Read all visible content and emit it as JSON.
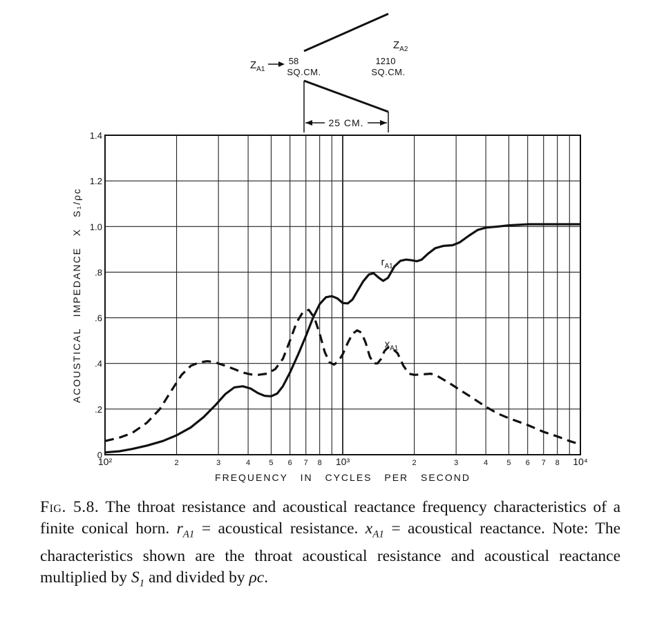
{
  "chart_data": {
    "type": "line",
    "x_scale": "log",
    "xlim": [
      100,
      10000
    ],
    "ylim": [
      0,
      1.4
    ],
    "grid": true,
    "xlabel": "FREQUENCY IN CYCLES PER SECOND",
    "ylabel": "ACOUSTICAL IMPEDANCE X S₁/ρc",
    "x_ticks": [
      {
        "value": 100,
        "label": "10²"
      },
      {
        "value": 200,
        "label": "2"
      },
      {
        "value": 300,
        "label": "3"
      },
      {
        "value": 400,
        "label": "4"
      },
      {
        "value": 500,
        "label": "5"
      },
      {
        "value": 600,
        "label": "6"
      },
      {
        "value": 700,
        "label": "7"
      },
      {
        "value": 800,
        "label": "8"
      },
      {
        "value": 1000,
        "label": "10³"
      },
      {
        "value": 2000,
        "label": "2"
      },
      {
        "value": 3000,
        "label": "3"
      },
      {
        "value": 4000,
        "label": "4"
      },
      {
        "value": 5000,
        "label": "5"
      },
      {
        "value": 6000,
        "label": "6"
      },
      {
        "value": 7000,
        "label": "7"
      },
      {
        "value": 8000,
        "label": "8"
      },
      {
        "value": 10000,
        "label": "10⁴"
      }
    ],
    "y_ticks": [
      {
        "value": 0,
        "label": "0"
      },
      {
        "value": 0.2,
        "label": ".2"
      },
      {
        "value": 0.4,
        "label": ".4"
      },
      {
        "value": 0.6,
        "label": ".6"
      },
      {
        "value": 0.8,
        "label": ".8"
      },
      {
        "value": 1.0,
        "label": "1.0"
      },
      {
        "value": 1.2,
        "label": "1.2"
      },
      {
        "value": 1.4,
        "label": "1.4"
      }
    ],
    "series": [
      {
        "name": "r_A1",
        "label": "r",
        "label_sub": "A1",
        "style": "solid",
        "label_at": [
          1450,
          0.83
        ],
        "points": [
          [
            100,
            0.01
          ],
          [
            115,
            0.015
          ],
          [
            130,
            0.025
          ],
          [
            150,
            0.04
          ],
          [
            175,
            0.06
          ],
          [
            200,
            0.085
          ],
          [
            230,
            0.12
          ],
          [
            260,
            0.165
          ],
          [
            290,
            0.215
          ],
          [
            320,
            0.265
          ],
          [
            350,
            0.295
          ],
          [
            380,
            0.3
          ],
          [
            410,
            0.29
          ],
          [
            440,
            0.27
          ],
          [
            470,
            0.258
          ],
          [
            500,
            0.256
          ],
          [
            530,
            0.268
          ],
          [
            560,
            0.3
          ],
          [
            600,
            0.36
          ],
          [
            650,
            0.44
          ],
          [
            700,
            0.52
          ],
          [
            750,
            0.6
          ],
          [
            800,
            0.66
          ],
          [
            850,
            0.69
          ],
          [
            900,
            0.695
          ],
          [
            950,
            0.685
          ],
          [
            1000,
            0.665
          ],
          [
            1050,
            0.663
          ],
          [
            1100,
            0.68
          ],
          [
            1150,
            0.715
          ],
          [
            1220,
            0.76
          ],
          [
            1290,
            0.79
          ],
          [
            1350,
            0.795
          ],
          [
            1420,
            0.775
          ],
          [
            1480,
            0.762
          ],
          [
            1550,
            0.775
          ],
          [
            1650,
            0.825
          ],
          [
            1750,
            0.85
          ],
          [
            1850,
            0.855
          ],
          [
            1950,
            0.852
          ],
          [
            2050,
            0.848
          ],
          [
            2150,
            0.855
          ],
          [
            2280,
            0.88
          ],
          [
            2450,
            0.905
          ],
          [
            2650,
            0.915
          ],
          [
            2900,
            0.918
          ],
          [
            3100,
            0.93
          ],
          [
            3400,
            0.96
          ],
          [
            3700,
            0.985
          ],
          [
            4000,
            0.995
          ],
          [
            4500,
            1.0
          ],
          [
            5000,
            1.005
          ],
          [
            6000,
            1.01
          ],
          [
            7000,
            1.01
          ],
          [
            8000,
            1.01
          ],
          [
            10000,
            1.01
          ]
        ]
      },
      {
        "name": "x_A1",
        "label": "x",
        "label_sub": "A1",
        "style": "dashed",
        "label_at": [
          1500,
          0.47
        ],
        "points": [
          [
            100,
            0.06
          ],
          [
            115,
            0.075
          ],
          [
            130,
            0.095
          ],
          [
            150,
            0.14
          ],
          [
            170,
            0.2
          ],
          [
            190,
            0.28
          ],
          [
            210,
            0.35
          ],
          [
            230,
            0.39
          ],
          [
            250,
            0.405
          ],
          [
            270,
            0.41
          ],
          [
            290,
            0.405
          ],
          [
            320,
            0.39
          ],
          [
            350,
            0.375
          ],
          [
            380,
            0.36
          ],
          [
            410,
            0.352
          ],
          [
            440,
            0.35
          ],
          [
            480,
            0.355
          ],
          [
            520,
            0.375
          ],
          [
            560,
            0.42
          ],
          [
            600,
            0.5
          ],
          [
            640,
            0.58
          ],
          [
            680,
            0.625
          ],
          [
            720,
            0.635
          ],
          [
            760,
            0.6
          ],
          [
            800,
            0.53
          ],
          [
            840,
            0.45
          ],
          [
            880,
            0.405
          ],
          [
            920,
            0.395
          ],
          [
            960,
            0.41
          ],
          [
            1000,
            0.44
          ],
          [
            1050,
            0.49
          ],
          [
            1100,
            0.53
          ],
          [
            1150,
            0.545
          ],
          [
            1200,
            0.535
          ],
          [
            1250,
            0.49
          ],
          [
            1300,
            0.43
          ],
          [
            1350,
            0.4
          ],
          [
            1400,
            0.4
          ],
          [
            1450,
            0.42
          ],
          [
            1500,
            0.455
          ],
          [
            1550,
            0.47
          ],
          [
            1600,
            0.47
          ],
          [
            1700,
            0.445
          ],
          [
            1800,
            0.39
          ],
          [
            1900,
            0.355
          ],
          [
            2000,
            0.35
          ],
          [
            2150,
            0.352
          ],
          [
            2350,
            0.355
          ],
          [
            2500,
            0.345
          ],
          [
            2800,
            0.315
          ],
          [
            3100,
            0.285
          ],
          [
            3500,
            0.25
          ],
          [
            4000,
            0.21
          ],
          [
            4500,
            0.18
          ],
          [
            5000,
            0.16
          ],
          [
            6000,
            0.13
          ],
          [
            7000,
            0.1
          ],
          [
            8000,
            0.08
          ],
          [
            9000,
            0.06
          ],
          [
            10000,
            0.045
          ]
        ]
      }
    ]
  },
  "horn_diagram": {
    "throat_label": "Z",
    "throat_label_sub": "A1",
    "mouth_label": "Z",
    "mouth_label_sub": "A2",
    "throat_area_value": "58",
    "throat_area_unit": "SQ.CM.",
    "mouth_area_value": "1210",
    "mouth_area_unit": "SQ.CM.",
    "length_label": "25 CM."
  },
  "caption": {
    "fig_label": "Fig. 5.8.",
    "t1": "The throat resistance and acoustical reactance frequency characteristics of a finite conical horn.",
    "r_sym": "r",
    "r_sub": "A1",
    "t2": "= acoustical resistance.",
    "x_sym": "x",
    "x_sub": "A1",
    "t3": "= acoustical reactance. Note: The characteristics shown are the throat acoustical resistance and acoustical reactance multiplied by",
    "s_sym": "S",
    "s_sub": "1",
    "t4": "and divided by",
    "rho_c": "ρc",
    "t5": "."
  }
}
